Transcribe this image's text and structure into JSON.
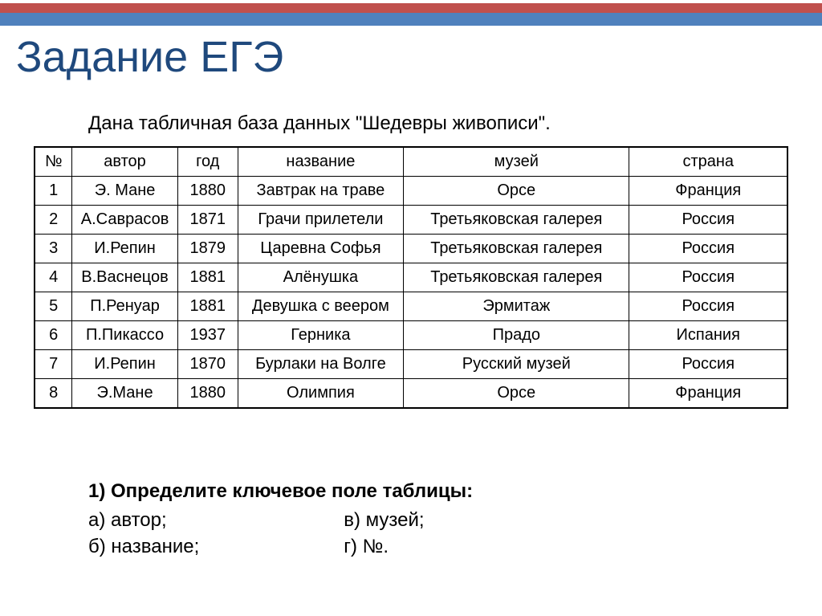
{
  "colors": {
    "stripe_red": "#c0504d",
    "stripe_blue": "#4f81bd",
    "title_color": "#1f497d",
    "text_color": "#000000",
    "border_color": "#000000",
    "background": "#ffffff"
  },
  "typography": {
    "title_fontsize_pt": 40,
    "body_fontsize_pt": 18,
    "cell_fontsize_pt": 15,
    "font_family": "Arial"
  },
  "title": "Задание ЕГЭ",
  "intro": "Дана табличная база данных \"Шедевры живописи\".",
  "table": {
    "type": "table",
    "border_color": "#000000",
    "cell_align": "center",
    "col_widths_pct": [
      5,
      14,
      8,
      22,
      30,
      21
    ],
    "columns": [
      "№",
      "автор",
      "год",
      "название",
      "музей",
      "страна"
    ],
    "rows": [
      [
        "1",
        "Э. Мане",
        "1880",
        "Завтрак на траве",
        "Орсе",
        "Франция"
      ],
      [
        "2",
        "А.Саврасов",
        "1871",
        "Грачи прилетели",
        "Третьяковская галерея",
        "Россия"
      ],
      [
        "3",
        "И.Репин",
        "1879",
        "Царевна Софья",
        "Третьяковская галерея",
        "Россия"
      ],
      [
        "4",
        "В.Васнецов",
        "1881",
        "Алёнушка",
        "Третьяковская галерея",
        "Россия"
      ],
      [
        "5",
        "П.Ренуар",
        "1881",
        "Девушка с веером",
        "Эрмитаж",
        "Россия"
      ],
      [
        "6",
        "П.Пикассо",
        "1937",
        "Герника",
        "Прадо",
        "Испания"
      ],
      [
        "7",
        "И.Репин",
        "1870",
        "Бурлаки на Волге",
        "Русский музей",
        "Россия"
      ],
      [
        "8",
        "Э.Мане",
        "1880",
        "Олимпия",
        "Орсе",
        "Франция"
      ]
    ]
  },
  "question": {
    "title": "1) Определите ключевое поле таблицы:",
    "options_col1": [
      "а) автор;",
      "б) название;"
    ],
    "options_col2": [
      "в) музей;",
      "г) №."
    ]
  }
}
